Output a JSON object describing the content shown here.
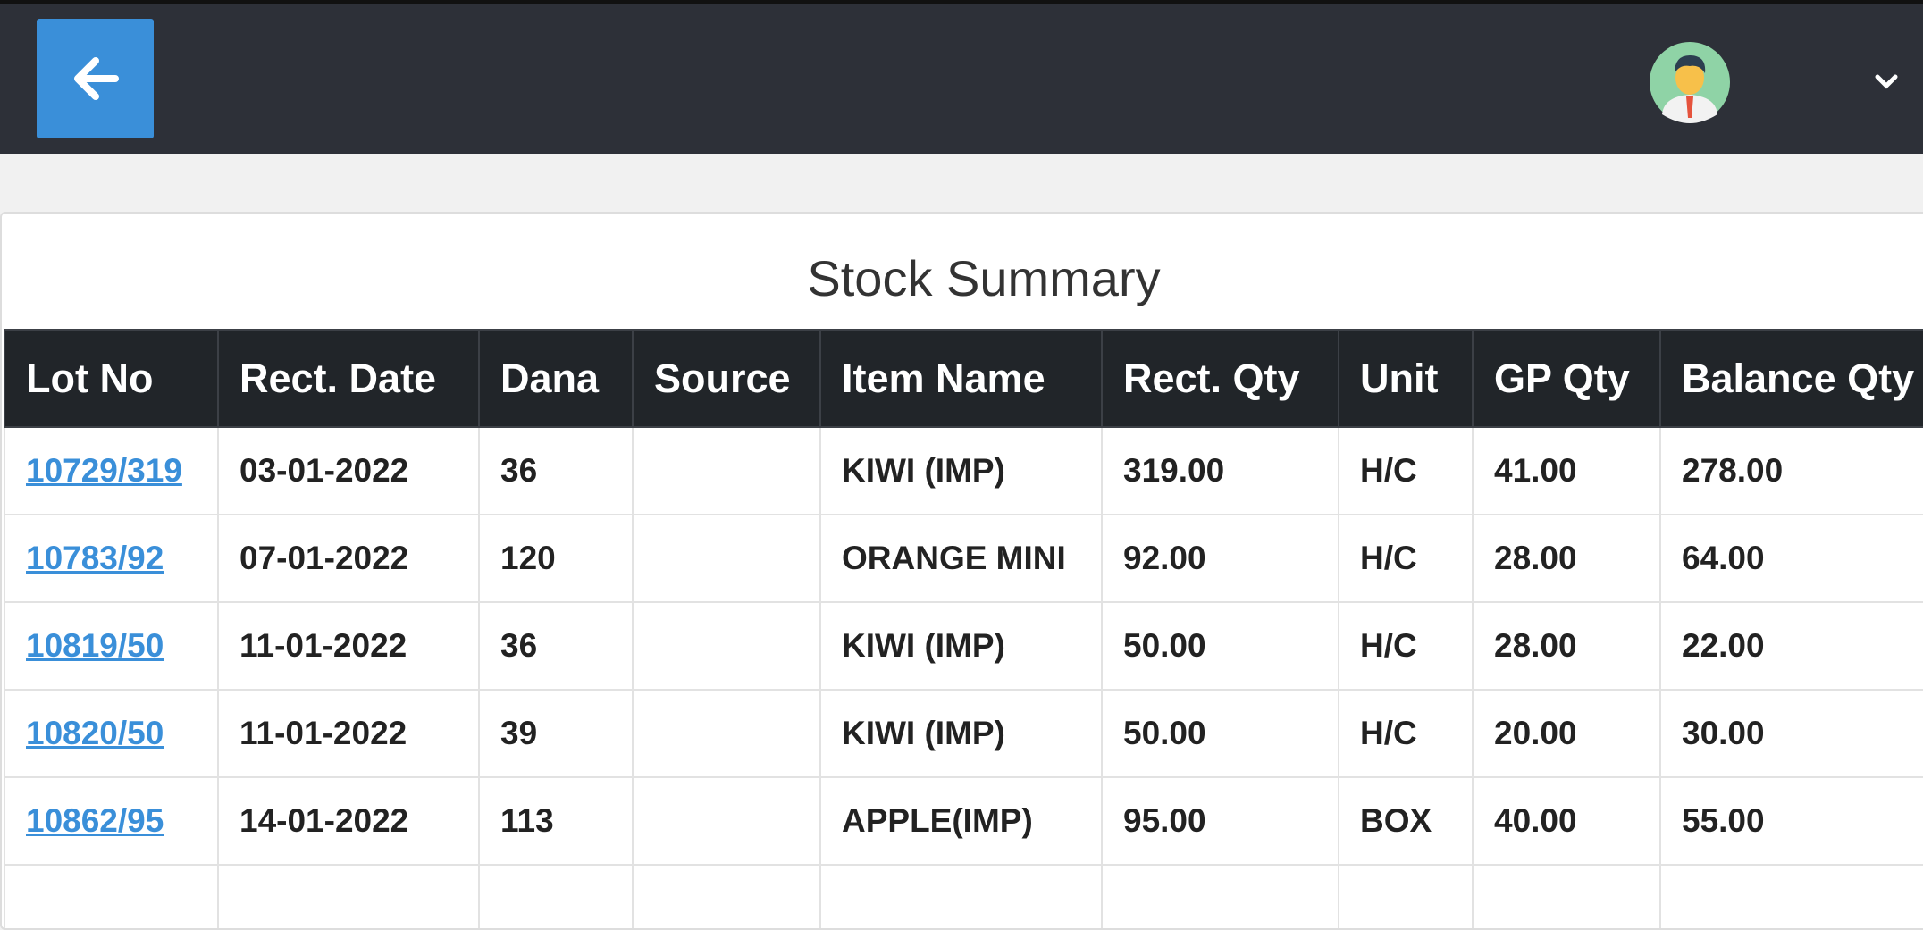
{
  "table": {
    "title": "Stock Summary",
    "columns": [
      "Lot No",
      "Rect. Date",
      "Dana",
      "Source",
      "Item Name",
      "Rect. Qty",
      "Unit",
      "GP Qty",
      "Balance Qty"
    ],
    "rows": [
      [
        "10729/319",
        "03-01-2022",
        "36",
        null,
        "KIWI (IMP)",
        "319.00",
        "H/C",
        "41.00",
        "278.00"
      ],
      [
        "10783/92",
        "07-01-2022",
        "120",
        null,
        "ORANGE MINI",
        "92.00",
        "H/C",
        "28.00",
        "64.00"
      ],
      [
        "10819/50",
        "11-01-2022",
        "36",
        null,
        "KIWI (IMP)",
        "50.00",
        "H/C",
        "28.00",
        "22.00"
      ],
      [
        "10820/50",
        "11-01-2022",
        "39",
        null,
        "KIWI (IMP)",
        "50.00",
        "H/C",
        "20.00",
        "30.00"
      ],
      [
        "10862/95",
        "14-01-2022",
        "113",
        null,
        "APPLE(IMP)",
        "95.00",
        "BOX",
        "40.00",
        "55.00"
      ]
    ]
  }
}
